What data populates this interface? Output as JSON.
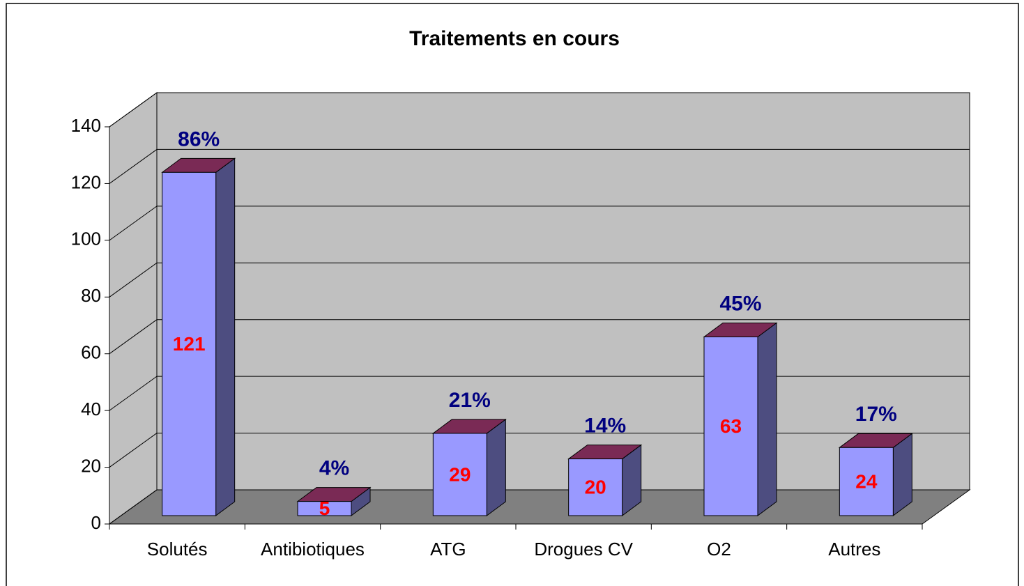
{
  "chart_data": {
    "type": "bar3d",
    "title": "Traitements en cours",
    "categories": [
      "Solutés",
      "Antibiotiques",
      "ATG",
      "Drogues CV",
      "O2",
      "Autres"
    ],
    "values": [
      121,
      5,
      29,
      20,
      63,
      24
    ],
    "annotations": [
      "86%",
      "4%",
      "21%",
      "14%",
      "45%",
      "17%"
    ],
    "colors": {
      "front": "#9999ff",
      "side": "#4d4d80",
      "top": "#7a2a55",
      "wall": "#c0c0c0",
      "floor": "#808080",
      "value_label": "#ff0000",
      "annotation": "#000080"
    },
    "ylim": [
      0,
      140
    ],
    "yticks": [
      0,
      20,
      40,
      60,
      80,
      100,
      120,
      140
    ],
    "grid": true
  }
}
